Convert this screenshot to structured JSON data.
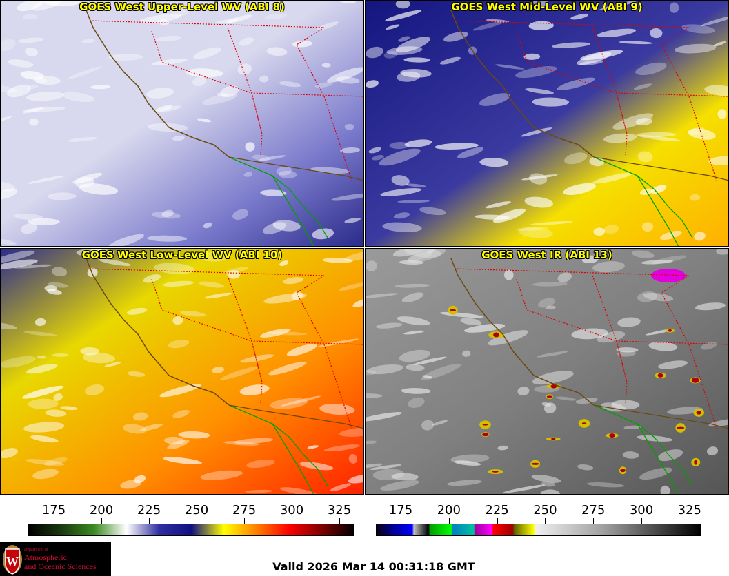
{
  "panels": [
    {
      "title": "GOES West Upper-Level WV (ABI 8)",
      "base": "#d8d8ee",
      "dark": "#2a2a8a",
      "warm": "#7a7acc"
    },
    {
      "title": "GOES West Mid-Level WV (ABI 9)",
      "base": "#3a3aa0",
      "dark": "#151580",
      "warm": "#f5e000"
    },
    {
      "title": "GOES West Low-Level WV (ABI 10)",
      "base": "#e8d800",
      "dark": "#2a2a90",
      "warm": "#ff3a00"
    },
    {
      "title": "GOES West IR (ABI 13)",
      "base": "#8a8a8a",
      "dark": "#5a5a5a",
      "warm": "#6a6a6a"
    }
  ],
  "colorbars": {
    "ticks": [
      "175",
      "200",
      "225",
      "250",
      "275",
      "300",
      "325"
    ],
    "wv_colors": [
      "#000000",
      "#1a3a10",
      "#3a8a20",
      "#ffffff",
      "#3030a0",
      "#101080",
      "#ffff00",
      "#ff8000",
      "#ff0000",
      "#800000",
      "#000000"
    ],
    "ir_colors": [
      "#100010",
      "#000080",
      "#0000ff",
      "#c0c0c0",
      "#000000",
      "#00a000",
      "#00ff00",
      "#0080c0",
      "#00c0a0",
      "#a000a0",
      "#ff00ff",
      "#ff0000",
      "#a00000",
      "#606000",
      "#ffff00",
      "#f0f0f0",
      "#a0a0a0",
      "#000000"
    ]
  },
  "logo": {
    "line1": "Department of",
    "line2": "Atmospheric",
    "line3": "and Oceanic Sciences",
    "letter": "W"
  },
  "valid": "Valid 2026 Mar 14 00:31:18 GMT"
}
